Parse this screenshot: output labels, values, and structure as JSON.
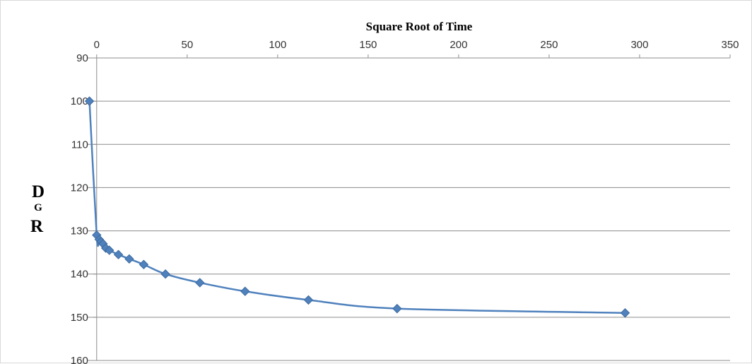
{
  "chart_data": {
    "type": "scatter",
    "title": "Square Root of Time",
    "xlabel": "Square Root of Time",
    "ylabel_lines": [
      "D",
      "G",
      "R"
    ],
    "xlim": [
      -5,
      350
    ],
    "ylim": [
      90,
      160
    ],
    "y_inverted": true,
    "x_axis_position": "top",
    "xticks": [
      0,
      50,
      100,
      150,
      200,
      250,
      300,
      350
    ],
    "yticks": [
      90,
      100,
      110,
      120,
      130,
      140,
      150,
      160
    ],
    "grid": "horizontal",
    "line_color": "#4f81bd",
    "series": [
      {
        "x": [
          -4,
          0,
          1.4,
          2.4,
          3.5,
          5,
          7,
          12,
          18,
          26,
          38,
          57,
          82,
          117,
          166,
          292
        ],
        "y": [
          100,
          131,
          132,
          132.5,
          133,
          134,
          134.5,
          135.5,
          136.5,
          137.8,
          140,
          142,
          144,
          146,
          148,
          149
        ]
      }
    ]
  }
}
